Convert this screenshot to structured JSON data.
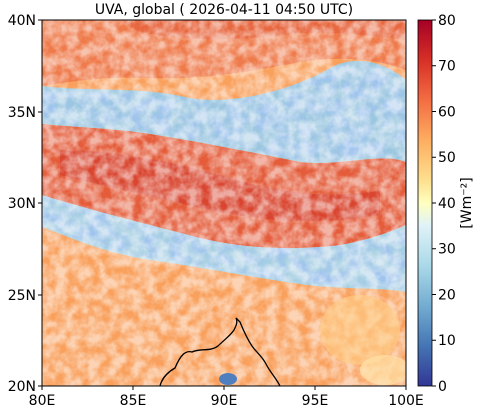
{
  "figure": {
    "title": "UVA, global ( 2026-04-11 04:50 UTC)"
  },
  "map": {
    "x_ticks": [
      "80E",
      "85E",
      "90E",
      "95E",
      "100E"
    ],
    "y_ticks": [
      "20N",
      "25N",
      "30N",
      "35N",
      "40N"
    ],
    "lon_range": [
      80,
      100
    ],
    "lat_range": [
      20,
      40
    ],
    "coastline": "visible",
    "colormap": "RdYlBu_r"
  },
  "colorbar": {
    "label": "[Wm⁻²]",
    "ticks": [
      "0",
      "10",
      "20",
      "30",
      "40",
      "50",
      "60",
      "70",
      "80"
    ],
    "range": [
      0,
      80
    ],
    "colors": [
      "#313695",
      "#4575b4",
      "#74add1",
      "#abd9e9",
      "#e0f3f8",
      "#fee090",
      "#fdae61",
      "#f46d43",
      "#d73027",
      "#a50026"
    ]
  }
}
